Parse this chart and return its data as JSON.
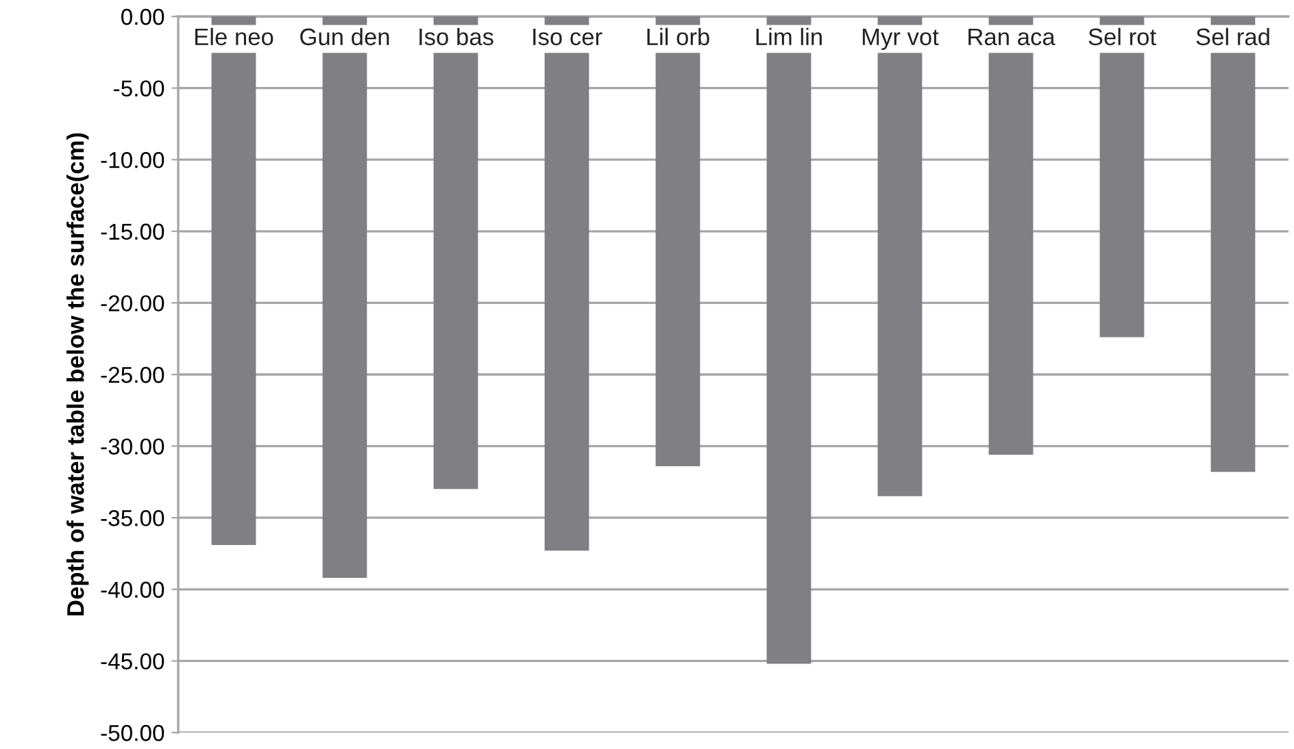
{
  "chart_data": {
    "type": "bar",
    "ylabel": "Depth of water table below the surface(cm)",
    "categories": [
      "Ele neo",
      "Gun den",
      "Iso bas",
      "Iso cer",
      "Lil orb",
      "Lim lin",
      "Myr vot",
      "Ran aca",
      "Sel rot",
      "Sel rad"
    ],
    "values": [
      -36.9,
      -39.2,
      -33.0,
      -37.3,
      -31.4,
      -45.2,
      -33.5,
      -30.6,
      -22.4,
      -31.8
    ],
    "color": "#7f7f84",
    "ylim": [
      -50,
      0
    ],
    "yticks": [
      {
        "value": 0,
        "label": "0.00"
      },
      {
        "value": -5,
        "label": "-5.00"
      },
      {
        "value": -10,
        "label": "-10.00"
      },
      {
        "value": -15,
        "label": "-15.00"
      },
      {
        "value": -20,
        "label": "-20.00"
      },
      {
        "value": -25,
        "label": "-25.00"
      },
      {
        "value": -30,
        "label": "-30.00"
      },
      {
        "value": -35,
        "label": "-35.00"
      },
      {
        "value": -40,
        "label": "-40.00"
      },
      {
        "value": -45,
        "label": "-45.00"
      },
      {
        "value": -50,
        "label": "-50.00"
      }
    ],
    "grid": "y"
  }
}
